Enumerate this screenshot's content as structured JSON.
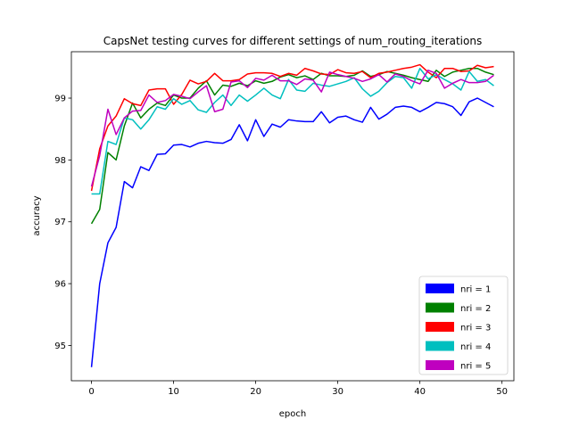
{
  "chart_data": {
    "type": "line",
    "title": "CapsNet testing curves for different settings of num_routing_iterations",
    "xlabel": "epoch",
    "ylabel": "accuracy",
    "xlim": [
      -2.45,
      51.45
    ],
    "ylim": [
      94.43,
      99.75
    ],
    "xticks": [
      0,
      10,
      20,
      30,
      40,
      50
    ],
    "yticks": [
      95,
      96,
      97,
      98,
      99
    ],
    "grid": false,
    "legend_position": "lower-right",
    "series": [
      {
        "name": "nri = 1",
        "color": "#0000ff",
        "values": [
          94.65,
          96.0,
          96.66,
          96.91,
          97.65,
          97.55,
          97.89,
          97.83,
          98.09,
          98.1,
          98.24,
          98.25,
          98.21,
          98.27,
          98.3,
          98.28,
          98.27,
          98.33,
          98.57,
          98.31,
          98.65,
          98.38,
          98.58,
          98.53,
          98.65,
          98.63,
          98.62,
          98.62,
          98.78,
          98.6,
          98.69,
          98.71,
          98.65,
          98.61,
          98.85,
          98.66,
          98.74,
          98.85,
          98.87,
          98.85,
          98.78,
          98.85,
          98.93,
          98.91,
          98.86,
          98.72,
          98.94,
          99.0,
          98.93,
          98.86
        ]
      },
      {
        "name": "nri = 2",
        "color": "#008000",
        "values": [
          96.97,
          97.2,
          98.12,
          98.0,
          98.55,
          98.92,
          98.68,
          98.82,
          98.92,
          98.88,
          99.05,
          99.0,
          99.0,
          99.16,
          99.28,
          99.05,
          99.21,
          99.19,
          99.24,
          99.2,
          99.28,
          99.24,
          99.27,
          99.34,
          99.38,
          99.33,
          99.36,
          99.3,
          99.4,
          99.36,
          99.36,
          99.35,
          99.37,
          99.44,
          99.35,
          99.38,
          99.43,
          99.4,
          99.37,
          99.33,
          99.3,
          99.27,
          99.45,
          99.35,
          99.42,
          99.45,
          99.48,
          99.48,
          99.42,
          99.38
        ]
      },
      {
        "name": "nri = 3",
        "color": "#ff0000",
        "values": [
          97.5,
          98.18,
          98.55,
          98.71,
          98.99,
          98.91,
          98.88,
          99.13,
          99.15,
          99.15,
          98.9,
          99.06,
          99.29,
          99.23,
          99.27,
          99.4,
          99.28,
          99.28,
          99.3,
          99.39,
          99.41,
          99.41,
          99.4,
          99.35,
          99.4,
          99.37,
          99.48,
          99.44,
          99.39,
          99.38,
          99.46,
          99.41,
          99.4,
          99.43,
          99.33,
          99.4,
          99.42,
          99.45,
          99.48,
          99.5,
          99.54,
          99.42,
          99.33,
          99.48,
          99.48,
          99.43,
          99.44,
          99.53,
          99.49,
          99.51
        ]
      },
      {
        "name": "nri = 4",
        "color": "#00bfbf",
        "values": [
          97.45,
          97.45,
          98.3,
          98.25,
          98.68,
          98.65,
          98.5,
          98.65,
          98.86,
          98.82,
          98.99,
          98.9,
          98.96,
          98.81,
          98.77,
          98.93,
          99.05,
          98.88,
          99.05,
          98.95,
          99.05,
          99.16,
          99.05,
          98.99,
          99.3,
          99.13,
          99.11,
          99.24,
          99.21,
          99.19,
          99.23,
          99.27,
          99.33,
          99.15,
          99.03,
          99.11,
          99.25,
          99.35,
          99.33,
          99.16,
          99.48,
          99.31,
          99.38,
          99.3,
          99.23,
          99.13,
          99.43,
          99.27,
          99.3,
          99.2
        ]
      },
      {
        "name": "nri = 5",
        "color": "#bf00bf",
        "values": [
          97.57,
          98.07,
          98.82,
          98.41,
          98.68,
          98.79,
          98.8,
          99.05,
          98.93,
          98.96,
          99.06,
          99.03,
          98.99,
          99.1,
          99.2,
          98.78,
          98.82,
          99.26,
          99.28,
          99.17,
          99.32,
          99.29,
          99.37,
          99.28,
          99.28,
          99.22,
          99.31,
          99.29,
          99.1,
          99.42,
          99.38,
          99.35,
          99.32,
          99.27,
          99.31,
          99.38,
          99.26,
          99.39,
          99.35,
          99.28,
          99.23,
          99.45,
          99.4,
          99.16,
          99.24,
          99.3,
          99.25,
          99.25,
          99.27,
          99.37
        ]
      }
    ]
  }
}
